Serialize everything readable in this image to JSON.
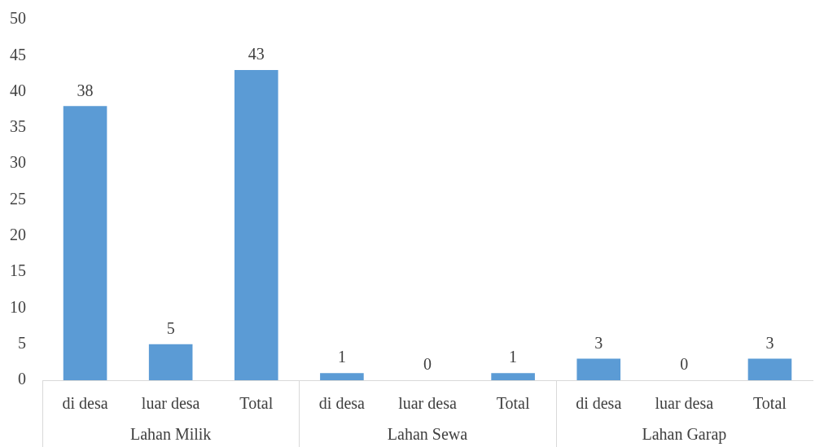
{
  "chart_data": {
    "type": "bar",
    "categories": [
      "di desa",
      "luar desa",
      "Total",
      "di desa",
      "luar desa",
      "Total",
      "di desa",
      "luar desa",
      "Total"
    ],
    "values": [
      38,
      5,
      43,
      1,
      0,
      1,
      3,
      0,
      3
    ],
    "color": "#5b9bd5",
    "ylim": [
      0,
      50
    ],
    "yticks": [
      0,
      5,
      10,
      15,
      20,
      25,
      30,
      35,
      40,
      45,
      50
    ],
    "annotations": [
      "Lahan Milik",
      "Lahan Sewa",
      "Lahan Garap"
    ],
    "data_labels": true,
    "grid": false,
    "legend": false
  }
}
